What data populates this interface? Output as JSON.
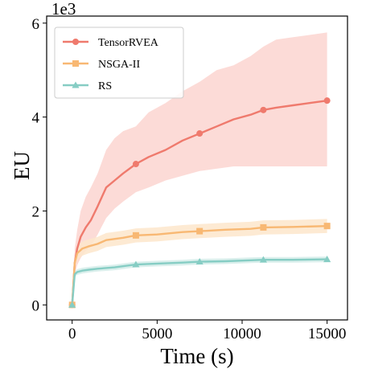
{
  "chart_data": {
    "type": "line",
    "xlabel": "Time (s)",
    "ylabel": "EU",
    "y_scale_label": "1e3",
    "xlim": [
      -1500,
      16200
    ],
    "ylim": [
      -320,
      6150
    ],
    "x_ticks": [
      0,
      5000,
      10000,
      15000
    ],
    "x_tick_labels": [
      "0",
      "5000",
      "10000",
      "15000"
    ],
    "y_ticks": [
      0,
      2000,
      4000,
      6000
    ],
    "y_tick_labels": [
      "0",
      "2",
      "4",
      "6"
    ],
    "legend": {
      "position": "top-left"
    },
    "grid": false,
    "series": [
      {
        "name": "TensorRVEA",
        "color": "#ef7a6d",
        "band_color": "#fbd5d0",
        "marker": "circle",
        "x": [
          0,
          150,
          300,
          500,
          800,
          1100,
          1500,
          2000,
          2500,
          3000,
          3750,
          4500,
          5500,
          6500,
          7500,
          8500,
          9500,
          10500,
          11250,
          12000,
          13000,
          14000,
          15000
        ],
        "y": [
          0,
          900,
          1200,
          1450,
          1650,
          1800,
          2100,
          2500,
          2650,
          2800,
          3000,
          3150,
          3300,
          3500,
          3650,
          3800,
          3950,
          4050,
          4150,
          4200,
          4250,
          4300,
          4350
        ],
        "lower": [
          0,
          650,
          850,
          1000,
          1150,
          1250,
          1500,
          1850,
          2050,
          2200,
          2400,
          2500,
          2650,
          2750,
          2850,
          2900,
          2950,
          2950,
          2950,
          2950,
          2950,
          2950,
          2950
        ],
        "upper": [
          0,
          1200,
          1600,
          2000,
          2300,
          2500,
          2800,
          3300,
          3550,
          3700,
          3800,
          4100,
          4300,
          4550,
          4750,
          5000,
          5100,
          5300,
          5500,
          5650,
          5700,
          5750,
          5800
        ],
        "marker_x": [
          0,
          3750,
          7500,
          11250,
          15000
        ],
        "marker_y": [
          0,
          3000,
          3650,
          4150,
          4350
        ]
      },
      {
        "name": "NSGA-II",
        "color": "#f8b873",
        "band_color": "#fde6cb",
        "marker": "square",
        "x": [
          0,
          150,
          300,
          600,
          1000,
          1500,
          2000,
          3000,
          3750,
          5000,
          6500,
          7500,
          9000,
          10500,
          11250,
          13000,
          15000
        ],
        "y": [
          0,
          900,
          1100,
          1200,
          1250,
          1300,
          1380,
          1430,
          1480,
          1500,
          1550,
          1570,
          1600,
          1620,
          1650,
          1660,
          1680
        ],
        "lower": [
          0,
          780,
          950,
          1050,
          1100,
          1150,
          1230,
          1280,
          1330,
          1350,
          1400,
          1420,
          1450,
          1470,
          1500,
          1510,
          1530
        ],
        "upper": [
          0,
          1020,
          1250,
          1350,
          1400,
          1450,
          1530,
          1580,
          1630,
          1650,
          1700,
          1720,
          1750,
          1770,
          1800,
          1810,
          1830
        ],
        "marker_x": [
          0,
          3750,
          7500,
          11250,
          15000
        ],
        "marker_y": [
          0,
          1480,
          1570,
          1650,
          1680
        ]
      },
      {
        "name": "RS",
        "color": "#86cdc4",
        "band_color": "#d3ece9",
        "marker": "triangle",
        "x": [
          0,
          150,
          300,
          600,
          1000,
          1500,
          2500,
          3750,
          5000,
          6500,
          7500,
          9000,
          10500,
          11250,
          13000,
          15000
        ],
        "y": [
          0,
          650,
          700,
          730,
          750,
          770,
          800,
          860,
          880,
          900,
          920,
          930,
          950,
          960,
          960,
          970
        ],
        "lower": [
          0,
          590,
          640,
          670,
          690,
          710,
          740,
          800,
          820,
          840,
          860,
          870,
          890,
          900,
          900,
          910
        ],
        "upper": [
          0,
          710,
          760,
          790,
          810,
          830,
          860,
          920,
          940,
          960,
          980,
          990,
          1010,
          1020,
          1020,
          1030
        ],
        "marker_x": [
          0,
          3750,
          7500,
          11250,
          15000
        ],
        "marker_y": [
          0,
          860,
          920,
          960,
          970
        ]
      }
    ]
  }
}
